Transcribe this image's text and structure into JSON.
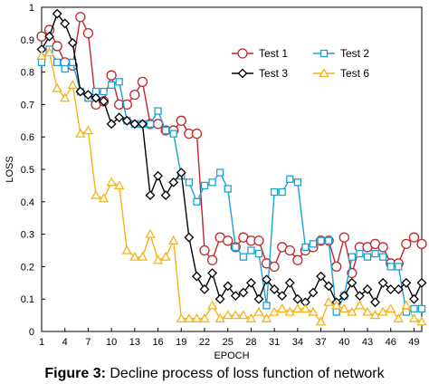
{
  "caption": {
    "label": "Figure 3:",
    "text": "Decline process of loss function of network"
  },
  "chart_data": {
    "type": "line",
    "xlabel": "EPOCH",
    "ylabel": "LOSS",
    "xlim": [
      1,
      50
    ],
    "ylim": [
      0,
      1
    ],
    "x_ticks": [
      1,
      4,
      7,
      10,
      13,
      16,
      19,
      22,
      25,
      28,
      31,
      34,
      37,
      40,
      43,
      46,
      49
    ],
    "y_ticks": [
      0,
      0.1,
      0.2,
      0.3,
      0.4,
      0.5,
      0.6,
      0.7,
      0.8,
      0.9,
      1
    ],
    "grid": false,
    "legend_position": "top-right",
    "x": [
      1,
      2,
      3,
      4,
      5,
      6,
      7,
      8,
      9,
      10,
      11,
      12,
      13,
      14,
      15,
      16,
      17,
      18,
      19,
      20,
      21,
      22,
      23,
      24,
      25,
      26,
      27,
      28,
      29,
      30,
      31,
      32,
      33,
      34,
      35,
      36,
      37,
      38,
      39,
      40,
      41,
      42,
      43,
      44,
      45,
      46,
      47,
      48,
      49,
      50
    ],
    "series": [
      {
        "name": "Test 1",
        "color": "#c0272d",
        "marker": "circle",
        "values": [
          0.91,
          0.93,
          0.88,
          0.83,
          0.82,
          0.97,
          0.92,
          0.7,
          0.71,
          0.79,
          0.7,
          0.7,
          0.73,
          0.77,
          0.64,
          0.64,
          0.62,
          0.62,
          0.65,
          0.61,
          0.61,
          0.25,
          0.22,
          0.29,
          0.28,
          0.26,
          0.29,
          0.28,
          0.28,
          0.21,
          0.2,
          0.26,
          0.25,
          0.22,
          0.25,
          0.26,
          0.28,
          0.28,
          0.2,
          0.29,
          0.18,
          0.26,
          0.26,
          0.27,
          0.26,
          0.21,
          0.21,
          0.27,
          0.29,
          0.27
        ]
      },
      {
        "name": "Test 2",
        "color": "#1ba3d6",
        "marker": "square",
        "values": [
          0.83,
          0.87,
          0.83,
          0.81,
          0.83,
          0.74,
          0.72,
          0.74,
          0.74,
          0.76,
          0.77,
          0.65,
          0.64,
          0.64,
          0.64,
          0.68,
          0.62,
          0.61,
          0.48,
          0.46,
          0.4,
          0.45,
          0.46,
          0.49,
          0.44,
          0.26,
          0.23,
          0.25,
          0.24,
          0.08,
          0.43,
          0.43,
          0.47,
          0.46,
          0.26,
          0.27,
          0.28,
          0.28,
          0.06,
          0.11,
          0.23,
          0.24,
          0.23,
          0.24,
          0.23,
          0.2,
          0.2,
          0.06,
          0.07,
          0.07
        ]
      },
      {
        "name": "Test 3",
        "color": "#000000",
        "marker": "diamond",
        "values": [
          0.87,
          0.91,
          0.98,
          0.95,
          0.89,
          0.74,
          0.73,
          0.72,
          0.71,
          0.64,
          0.66,
          0.65,
          0.64,
          0.64,
          0.42,
          0.48,
          0.42,
          0.46,
          0.49,
          0.29,
          0.17,
          0.13,
          0.18,
          0.1,
          0.14,
          0.11,
          0.12,
          0.15,
          0.1,
          0.16,
          0.13,
          0.11,
          0.15,
          0.1,
          0.09,
          0.12,
          0.17,
          0.14,
          0.09,
          0.11,
          0.15,
          0.11,
          0.13,
          0.09,
          0.15,
          0.13,
          0.13,
          0.15,
          0.1,
          0.15
        ]
      },
      {
        "name": "Test 6",
        "color": "#f4b418",
        "marker": "triangle",
        "values": [
          0.85,
          0.86,
          0.75,
          0.72,
          0.76,
          0.61,
          0.62,
          0.42,
          0.41,
          0.46,
          0.45,
          0.25,
          0.23,
          0.23,
          0.3,
          0.22,
          0.23,
          0.28,
          0.04,
          0.04,
          0.04,
          0.04,
          0.08,
          0.04,
          0.05,
          0.05,
          0.05,
          0.04,
          0.06,
          0.04,
          0.06,
          0.07,
          0.06,
          0.07,
          0.07,
          0.06,
          0.03,
          0.09,
          0.08,
          0.07,
          0.06,
          0.08,
          0.06,
          0.05,
          0.06,
          0.07,
          0.04,
          0.08,
          0.04,
          0.03
        ]
      }
    ]
  }
}
